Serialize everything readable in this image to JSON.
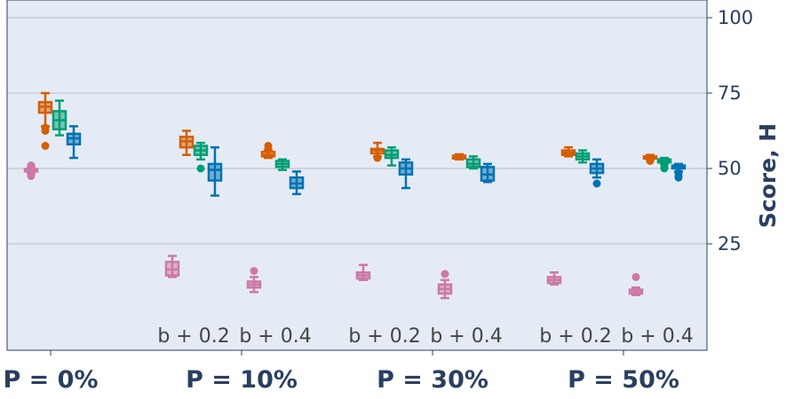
{
  "chart_data": {
    "type": "box",
    "ylabel": "Score, H",
    "yticks": [
      25,
      50,
      75,
      100
    ],
    "ylim": [
      -5,
      105
    ],
    "y_axis_side": "right",
    "grid": true,
    "groups": [
      {
        "label": "P = 0%",
        "sublabels": []
      },
      {
        "label": "P = 10%",
        "sublabels": [
          "b + 0.2",
          "b + 0.4"
        ]
      },
      {
        "label": "P = 30%",
        "sublabels": [
          "b + 0.2",
          "b + 0.4"
        ]
      },
      {
        "label": "P = 50%",
        "sublabels": [
          "b + 0.2",
          "b + 0.4"
        ]
      }
    ],
    "series_colors": [
      "#cc79a7",
      "#d55e00",
      "#009e73",
      "#0072b2"
    ],
    "boxes": [
      {
        "group": 0,
        "sub": 0,
        "series": 0,
        "min": 48.5,
        "q1": 49,
        "median": 49.3,
        "q3": 49.8,
        "max": 50.2,
        "outliers": [
          47.5,
          48,
          50.8,
          51
        ]
      },
      {
        "group": 0,
        "sub": 0,
        "series": 1,
        "min": 64,
        "q1": 68.5,
        "median": 70.5,
        "q3": 72,
        "max": 75,
        "outliers": [
          57.5,
          62.5,
          63.5
        ]
      },
      {
        "group": 0,
        "sub": 0,
        "series": 2,
        "min": 61,
        "q1": 63,
        "median": 66,
        "q3": 69,
        "max": 72.5,
        "outliers": []
      },
      {
        "group": 0,
        "sub": 0,
        "series": 3,
        "min": 53.5,
        "q1": 58,
        "median": 60,
        "q3": 61.5,
        "max": 64,
        "outliers": []
      },
      {
        "group": 1,
        "sub": 0,
        "series": 0,
        "min": 14,
        "q1": 14.5,
        "median": 16.5,
        "q3": 19,
        "max": 21,
        "outliers": []
      },
      {
        "group": 1,
        "sub": 0,
        "series": 1,
        "min": 54.5,
        "q1": 57,
        "median": 59,
        "q3": 60.5,
        "max": 62.5,
        "outliers": []
      },
      {
        "group": 1,
        "sub": 0,
        "series": 2,
        "min": 53,
        "q1": 54.5,
        "median": 56,
        "q3": 57.5,
        "max": 58.5,
        "outliers": [
          50
        ]
      },
      {
        "group": 1,
        "sub": 0,
        "series": 3,
        "min": 41,
        "q1": 46,
        "median": 49.5,
        "q3": 51.5,
        "max": 57,
        "outliers": []
      },
      {
        "group": 1,
        "sub": 1,
        "series": 0,
        "min": 9,
        "q1": 10.5,
        "median": 11.5,
        "q3": 12.5,
        "max": 14,
        "outliers": [
          16
        ]
      },
      {
        "group": 1,
        "sub": 1,
        "series": 1,
        "min": 53.5,
        "q1": 54,
        "median": 54.5,
        "q3": 55.5,
        "max": 56,
        "outliers": [
          56.5,
          57.5
        ]
      },
      {
        "group": 1,
        "sub": 1,
        "series": 2,
        "min": 49.5,
        "q1": 50.5,
        "median": 51.5,
        "q3": 52.5,
        "max": 53,
        "outliers": []
      },
      {
        "group": 1,
        "sub": 1,
        "series": 3,
        "min": 41.5,
        "q1": 43.5,
        "median": 45,
        "q3": 47,
        "max": 49,
        "outliers": []
      },
      {
        "group": 2,
        "sub": 0,
        "series": 0,
        "min": 13,
        "q1": 13.5,
        "median": 14.5,
        "q3": 15.5,
        "max": 18,
        "outliers": []
      },
      {
        "group": 2,
        "sub": 0,
        "series": 1,
        "min": 54,
        "q1": 55,
        "median": 56,
        "q3": 56.5,
        "max": 58.5,
        "outliers": [
          53.5
        ]
      },
      {
        "group": 2,
        "sub": 0,
        "series": 2,
        "min": 51,
        "q1": 53.5,
        "median": 54.5,
        "q3": 56,
        "max": 57,
        "outliers": []
      },
      {
        "group": 2,
        "sub": 0,
        "series": 3,
        "min": 43.5,
        "q1": 48,
        "median": 50,
        "q3": 52,
        "max": 53,
        "outliers": []
      },
      {
        "group": 2,
        "sub": 1,
        "series": 0,
        "min": 7,
        "q1": 8.5,
        "median": 10,
        "q3": 11.5,
        "max": 13,
        "outliers": [
          15
        ]
      },
      {
        "group": 2,
        "sub": 1,
        "series": 1,
        "min": 53,
        "q1": 53.3,
        "median": 53.7,
        "q3": 54.3,
        "max": 54.7,
        "outliers": []
      },
      {
        "group": 2,
        "sub": 1,
        "series": 2,
        "min": 50,
        "q1": 50.5,
        "median": 51.5,
        "q3": 53,
        "max": 54,
        "outliers": []
      },
      {
        "group": 2,
        "sub": 1,
        "series": 3,
        "min": 45.5,
        "q1": 46,
        "median": 48,
        "q3": 50.5,
        "max": 51.5,
        "outliers": []
      },
      {
        "group": 3,
        "sub": 0,
        "series": 0,
        "min": 11.5,
        "q1": 12,
        "median": 13,
        "q3": 14,
        "max": 15.5,
        "outliers": []
      },
      {
        "group": 3,
        "sub": 0,
        "series": 1,
        "min": 54,
        "q1": 54.5,
        "median": 55.2,
        "q3": 56,
        "max": 57,
        "outliers": []
      },
      {
        "group": 3,
        "sub": 0,
        "series": 2,
        "min": 52,
        "q1": 53,
        "median": 54,
        "q3": 55,
        "max": 56,
        "outliers": []
      },
      {
        "group": 3,
        "sub": 0,
        "series": 3,
        "min": 47,
        "q1": 48.5,
        "median": 50,
        "q3": 51.5,
        "max": 53,
        "outliers": [
          45
        ]
      },
      {
        "group": 3,
        "sub": 1,
        "series": 0,
        "min": 8,
        "q1": 8.5,
        "median": 9,
        "q3": 9.8,
        "max": 10.5,
        "outliers": [
          14
        ]
      },
      {
        "group": 3,
        "sub": 1,
        "series": 1,
        "min": 53,
        "q1": 53.3,
        "median": 53.7,
        "q3": 54,
        "max": 54.5,
        "outliers": [
          52.5
        ]
      },
      {
        "group": 3,
        "sub": 1,
        "series": 2,
        "min": 51.5,
        "q1": 52,
        "median": 52.5,
        "q3": 53,
        "max": 53.5,
        "outliers": [
          50,
          50.5
        ]
      },
      {
        "group": 3,
        "sub": 1,
        "series": 3,
        "min": 49,
        "q1": 50,
        "median": 50.5,
        "q3": 51,
        "max": 51.5,
        "outliers": [
          47,
          47.5,
          48.5
        ]
      }
    ]
  }
}
